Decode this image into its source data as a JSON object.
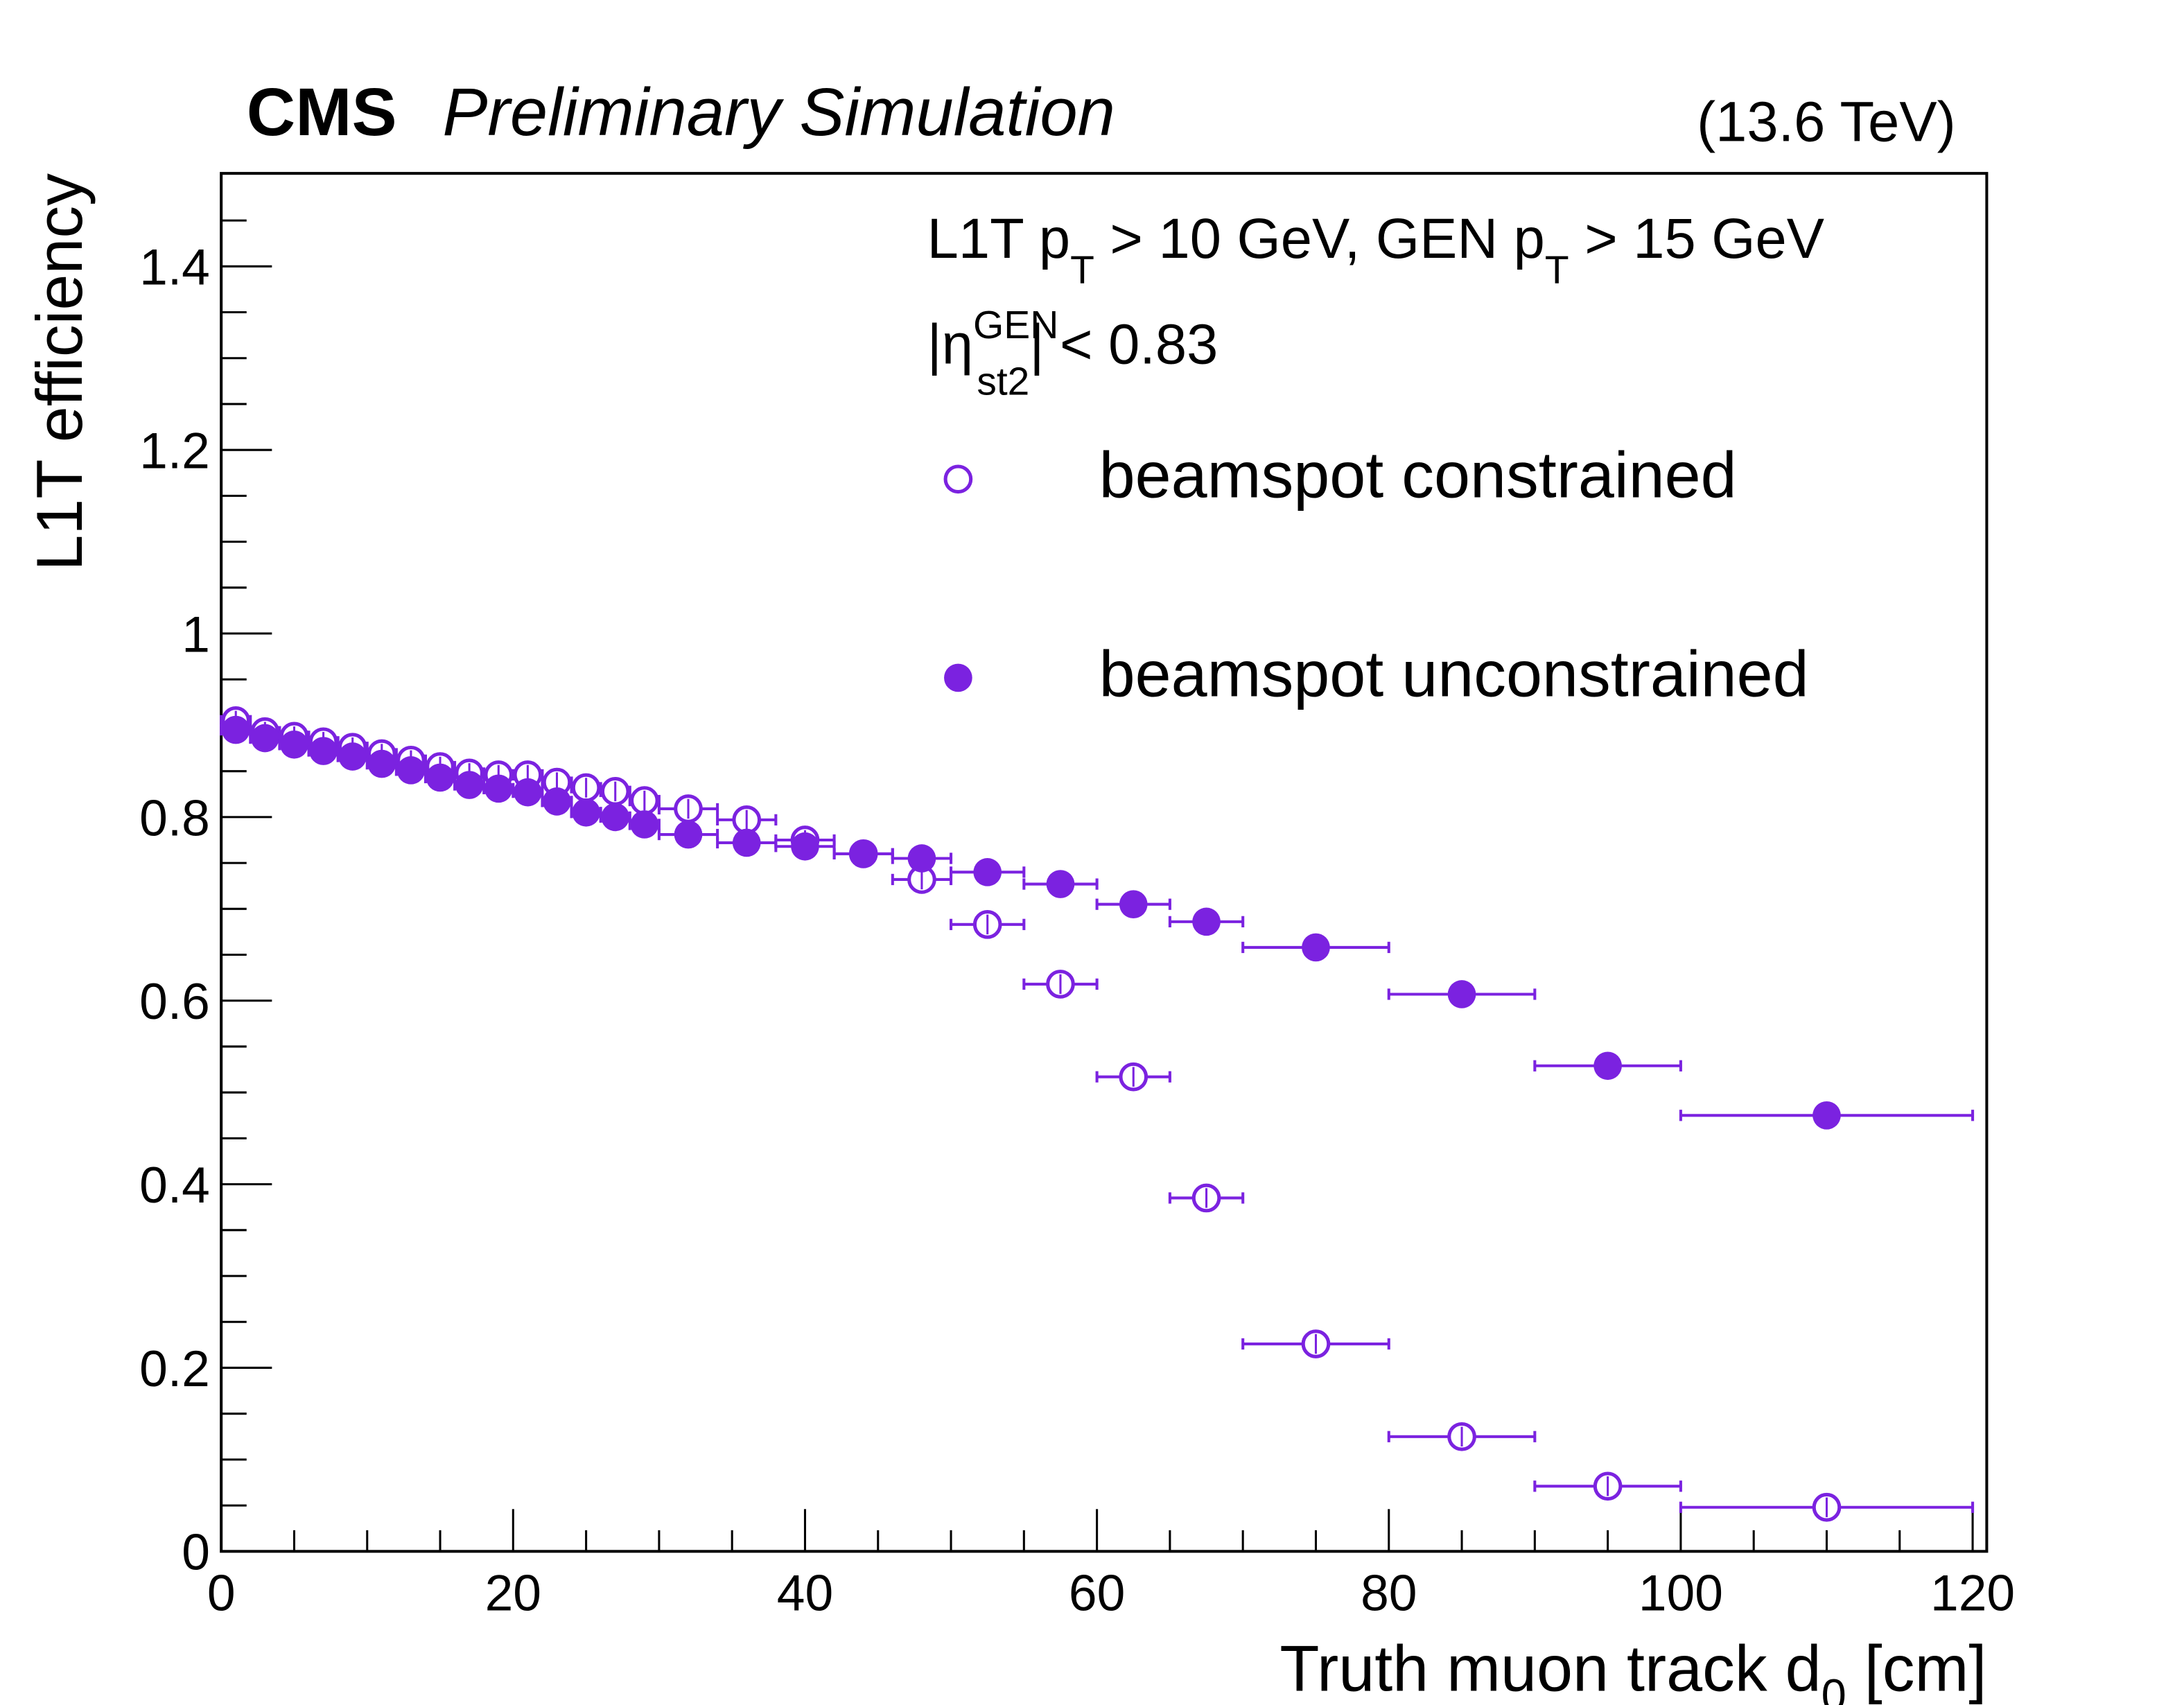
{
  "chart_data": {
    "type": "scatter",
    "header": {
      "experiment": "CMS",
      "status": "Preliminary Simulation",
      "energy": "(13.6 TeV)"
    },
    "xlabel": "Truth muon track d",
    "xlabel_sub": "0",
    "xlabel_unit": " [cm]",
    "ylabel": "L1T efficiency",
    "xlim": [
      0,
      120
    ],
    "ylim": [
      0,
      1.5
    ],
    "x_ticks": [
      0,
      20,
      40,
      60,
      80,
      100,
      120
    ],
    "x_tick_labels": [
      "0",
      "20",
      "40",
      "60",
      "80",
      "100",
      "120"
    ],
    "y_ticks": [
      0,
      0.2,
      0.4,
      0.6,
      0.8,
      1.0,
      1.2,
      1.4
    ],
    "y_tick_labels": [
      "0",
      "0.2",
      "0.4",
      "0.6",
      "0.8",
      "1",
      "1.2",
      "1.4"
    ],
    "grid": false,
    "annotations": {
      "line1": {
        "a": "L1T p",
        "a_sub": "T",
        "b": " > 10 GeV, GEN p",
        "b_sub": "T",
        "c": " > 15 GeV"
      },
      "line2": {
        "a": "|η",
        "sup": "GEN",
        "sub": "st2",
        "b": "| < 0.83"
      }
    },
    "legend_position": "top-right",
    "color": "#7b22e0",
    "series": [
      {
        "name": "beamspot constrained",
        "marker": "open-circle",
        "x": [
          1,
          3,
          5,
          7,
          9,
          11,
          13,
          15,
          17,
          19,
          21,
          23,
          25,
          27,
          29,
          32,
          36,
          40,
          44,
          48,
          52.5,
          57.5,
          62.5,
          67.5,
          75,
          85,
          95,
          110
        ],
        "xerr": [
          1,
          1,
          1,
          1,
          1,
          1,
          1,
          1,
          1,
          1,
          1,
          1,
          1,
          1,
          1,
          2,
          2,
          2,
          2,
          2,
          2.5,
          2.5,
          2.5,
          2.5,
          5,
          5,
          5,
          10
        ],
        "y": [
          0.905,
          0.893,
          0.888,
          0.882,
          0.876,
          0.869,
          0.862,
          0.855,
          0.848,
          0.846,
          0.846,
          0.838,
          0.832,
          0.828,
          0.818,
          0.809,
          0.797,
          0.775,
          0.76,
          0.732,
          0.683,
          0.618,
          0.517,
          0.385,
          0.226,
          0.125,
          0.071,
          0.048
        ]
      },
      {
        "name": "beamspot unconstrained",
        "marker": "filled-circle",
        "x": [
          1,
          3,
          5,
          7,
          9,
          11,
          13,
          15,
          17,
          19,
          21,
          23,
          25,
          27,
          29,
          32,
          36,
          40,
          44,
          48,
          52.5,
          57.5,
          62.5,
          67.5,
          75,
          85,
          95,
          110
        ],
        "xerr": [
          1,
          1,
          1,
          1,
          1,
          1,
          1,
          1,
          1,
          1,
          1,
          1,
          1,
          1,
          1,
          2,
          2,
          2,
          2,
          2,
          2.5,
          2.5,
          2.5,
          2.5,
          5,
          5,
          5,
          10
        ],
        "y": [
          0.895,
          0.886,
          0.879,
          0.872,
          0.866,
          0.858,
          0.851,
          0.843,
          0.835,
          0.831,
          0.827,
          0.817,
          0.805,
          0.8,
          0.792,
          0.781,
          0.772,
          0.768,
          0.76,
          0.755,
          0.74,
          0.727,
          0.705,
          0.686,
          0.658,
          0.607,
          0.529,
          0.475
        ]
      }
    ]
  }
}
